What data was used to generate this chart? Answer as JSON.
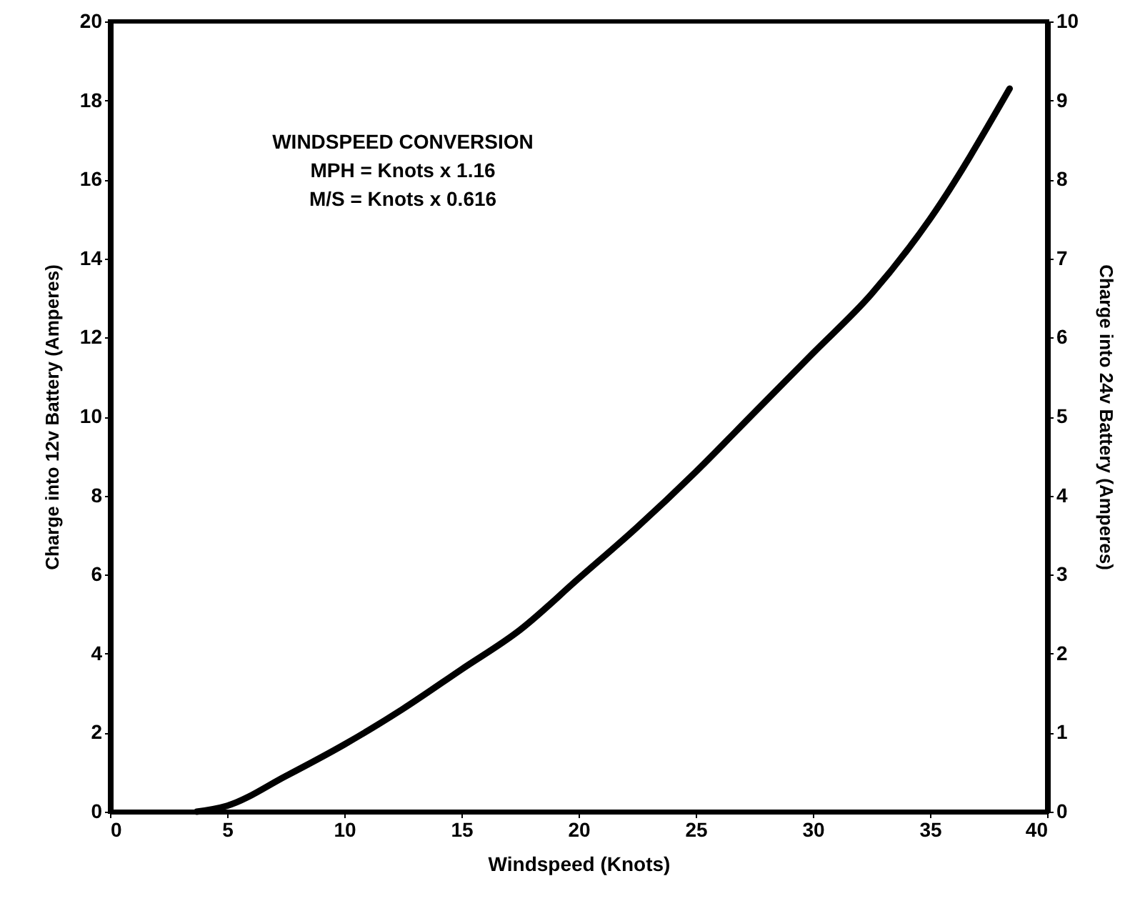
{
  "chart_data": {
    "type": "line",
    "xlabel": "Windspeed (Knots)",
    "ylabel": "Charge into 12v Battery (Amperes)",
    "y2label": "Charge into 24v Battery (Amperes)",
    "annotations": [
      "WINDSPEED CONVERSION",
      "MPH = Knots x 1.16",
      "M/S = Knots x 0.616"
    ],
    "x": [
      3.7,
      5,
      7.5,
      10,
      12.5,
      15,
      17.5,
      20,
      22.5,
      25,
      27.5,
      30,
      32.5,
      35,
      38.4
    ],
    "series": [
      {
        "color": "#000000",
        "values": [
          0,
          0.15,
          0.9,
          1.7,
          2.6,
          3.6,
          4.6,
          5.9,
          7.2,
          8.6,
          10.1,
          11.6,
          13.1,
          15.0,
          18.3
        ]
      }
    ],
    "xlim": [
      0,
      40
    ],
    "xticks": [
      0,
      5,
      10,
      15,
      20,
      25,
      30,
      35,
      40
    ],
    "ylim": [
      0,
      20
    ],
    "yticks": [
      0,
      2,
      4,
      6,
      8,
      10,
      12,
      14,
      16,
      18,
      20
    ],
    "y2lim": [
      0,
      10
    ],
    "y2ticks": [
      0,
      1,
      2,
      3,
      4,
      5,
      6,
      7,
      8,
      9,
      10
    ],
    "grid": false,
    "marker": "none",
    "line_style": "solid"
  }
}
